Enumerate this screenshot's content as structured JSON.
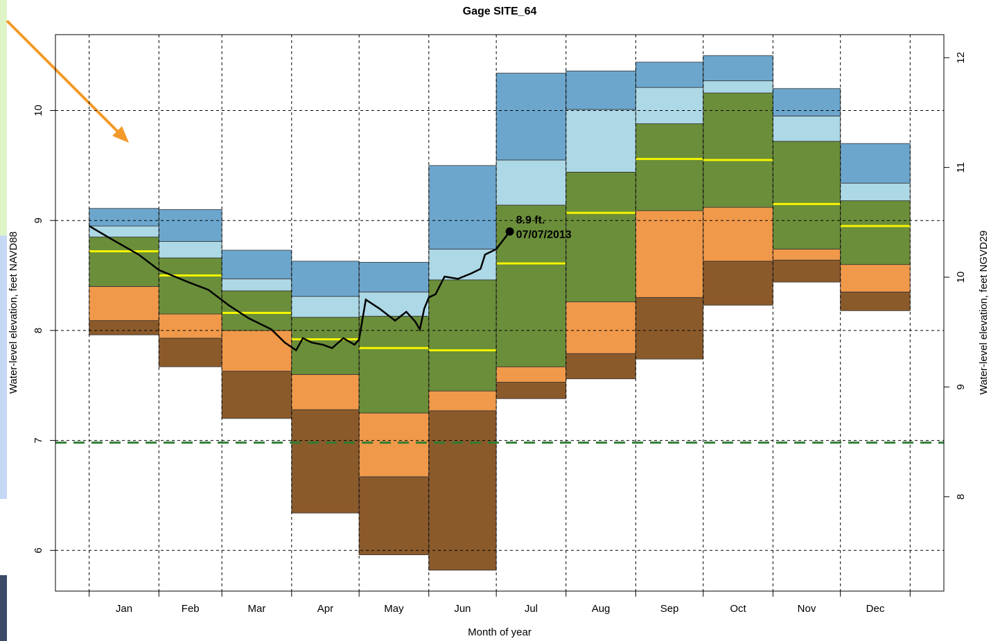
{
  "chart_data": {
    "type": "percentile_boxes",
    "title": "Gage SITE_64",
    "xlabel": "Month of year",
    "ylabel": "Water-level elevation, feet NAVD88",
    "y2label": "Water-level elevation, feet NGVD29",
    "categories": [
      "Jan",
      "Feb",
      "Mar",
      "Apr",
      "May",
      "Jun",
      "Jul",
      "Aug",
      "Sep",
      "Oct",
      "Nov",
      "Dec"
    ],
    "bins": [
      0,
      31,
      59,
      90,
      120,
      151,
      181,
      212,
      243,
      273,
      304,
      334,
      365
    ],
    "xlim": [
      -15,
      380
    ],
    "ylim": [
      5.63,
      10.69
    ],
    "yticks": [
      6,
      7,
      8,
      9,
      10
    ],
    "y2lim": [
      7.14,
      12.21
    ],
    "y2ticks": [
      8,
      9,
      10,
      11,
      12
    ],
    "levels": [
      [
        7.96,
        7.67,
        7.2,
        6.34,
        5.96,
        5.82,
        7.38,
        7.56,
        7.74,
        8.23,
        8.44,
        8.18
      ],
      [
        8.09,
        7.93,
        7.63,
        7.28,
        6.67,
        7.27,
        7.53,
        7.79,
        8.3,
        8.63,
        8.64,
        8.35
      ],
      [
        8.4,
        8.15,
        8.0,
        7.6,
        7.25,
        7.45,
        7.67,
        8.26,
        9.09,
        9.12,
        8.74,
        8.6
      ],
      [
        8.72,
        8.5,
        8.16,
        7.92,
        7.84,
        7.82,
        8.61,
        9.07,
        9.56,
        9.55,
        9.15,
        8.95
      ],
      [
        8.85,
        8.66,
        8.36,
        8.12,
        8.13,
        8.46,
        9.14,
        9.44,
        9.88,
        10.16,
        9.72,
        9.18
      ],
      [
        8.95,
        8.81,
        8.47,
        8.31,
        8.35,
        8.74,
        9.55,
        10.01,
        10.21,
        10.27,
        9.95,
        9.34
      ],
      [
        9.11,
        9.1,
        8.73,
        8.63,
        8.62,
        9.5,
        10.34,
        10.36,
        10.44,
        10.5,
        10.2,
        9.7
      ]
    ],
    "band_colors": [
      "#8b5a2b",
      "#f0994a",
      "#6b8e3a",
      "#6b8e3a",
      "#add8e6",
      "#6ca6cd"
    ],
    "median_level": 3,
    "median_color": "#f5f500",
    "line": {
      "color": "#000000",
      "x": [
        0,
        10,
        22,
        31,
        44,
        53,
        62,
        71,
        81,
        87,
        92,
        95,
        99,
        104,
        108,
        113,
        118,
        120,
        123,
        129,
        136,
        141,
        145,
        147,
        149,
        151,
        154,
        158,
        164,
        170,
        174,
        176,
        181,
        187
      ],
      "y": [
        8.95,
        8.83,
        8.69,
        8.55,
        8.44,
        8.37,
        8.23,
        8.11,
        8.01,
        7.89,
        7.82,
        7.93,
        7.89,
        7.87,
        7.84,
        7.93,
        7.87,
        7.92,
        8.28,
        8.2,
        8.09,
        8.17,
        8.08,
        8.01,
        8.2,
        8.3,
        8.33,
        8.49,
        8.47,
        8.52,
        8.56,
        8.69,
        8.74,
        8.9
      ]
    },
    "point": {
      "x": 187,
      "y": 8.9
    },
    "annotation": [
      "8.9 ft.",
      "07/07/2013"
    ],
    "reference_line": {
      "value": 6.98,
      "color": "#2e7d32"
    },
    "grid": true
  }
}
